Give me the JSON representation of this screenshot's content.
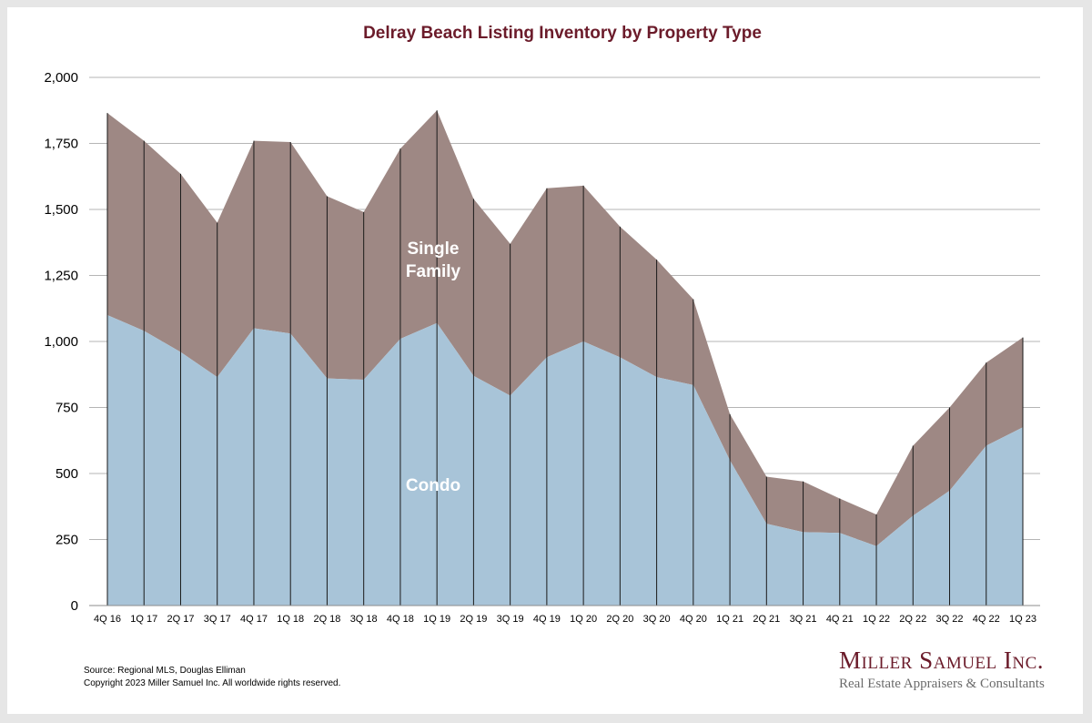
{
  "chart_data": {
    "type": "area",
    "title": "Delray Beach Listing Inventory by Property Type",
    "categories": [
      "4Q 16",
      "1Q 17",
      "2Q 17",
      "3Q 17",
      "4Q 17",
      "1Q 18",
      "2Q 18",
      "3Q 18",
      "4Q 18",
      "1Q 19",
      "2Q 19",
      "3Q 19",
      "4Q 19",
      "1Q 20",
      "2Q 20",
      "3Q 20",
      "4Q 20",
      "1Q 21",
      "2Q 21",
      "3Q 21",
      "4Q 21",
      "1Q 22",
      "2Q 22",
      "3Q 22",
      "4Q 22",
      "1Q 23"
    ],
    "stacked": true,
    "series": [
      {
        "name": "Condo",
        "color": "#a8c4d8",
        "values": [
          1100,
          1040,
          960,
          865,
          1050,
          1030,
          860,
          855,
          1010,
          1070,
          870,
          795,
          940,
          1000,
          940,
          865,
          835,
          550,
          310,
          278,
          275,
          225,
          340,
          435,
          605,
          675
        ]
      },
      {
        "name": "Single Family",
        "color": "#9e8884",
        "values": [
          765,
          720,
          675,
          585,
          710,
          725,
          690,
          635,
          720,
          805,
          670,
          575,
          640,
          590,
          495,
          445,
          325,
          175,
          178,
          192,
          130,
          120,
          265,
          315,
          315,
          340
        ]
      }
    ],
    "ylim": [
      0,
      2000
    ],
    "yticks": [
      "0",
      "250",
      "500",
      "750",
      "1,000",
      "1,250",
      "1,500",
      "1,750",
      "2,000"
    ],
    "grid": true,
    "legend": "in-area labels"
  },
  "source_lines": [
    "Source: Regional MLS, Douglas Elliman",
    "Copyright 2023 Miller Samuel Inc.  All worldwide rights reserved."
  ],
  "logo": {
    "name": "Miller Samuel Inc.",
    "tagline": "Real Estate Appraisers & Consultants"
  }
}
